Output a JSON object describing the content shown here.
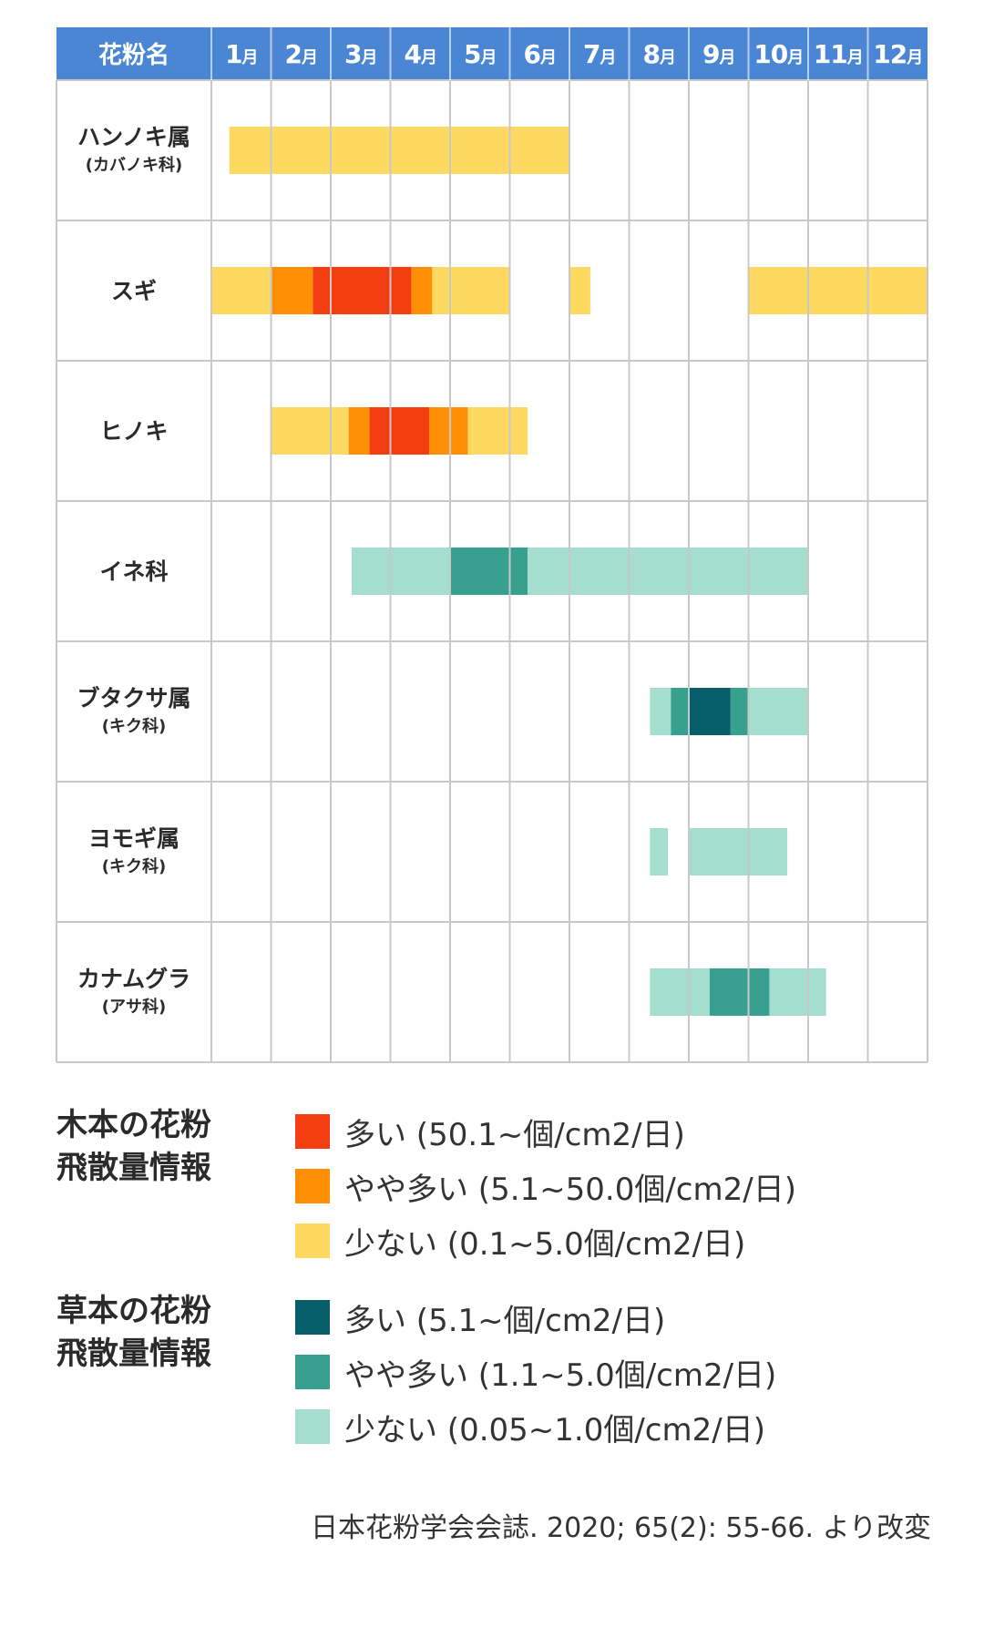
{
  "chart_data": {
    "type": "heatmap",
    "header_label": "花粉名",
    "months": [
      "1",
      "2",
      "3",
      "4",
      "5",
      "6",
      "7",
      "8",
      "9",
      "10",
      "11",
      "12"
    ],
    "month_unit": "月",
    "colors": {
      "header_bg": "#4a86d4",
      "header_text": "#ffffff",
      "grid": "#c8c8c8",
      "tree_high": "#f53d12",
      "tree_mid": "#ff9005",
      "tree_low": "#fdd962",
      "grass_high": "#075e6b",
      "grass_mid": "#37a08f",
      "grass_low": "#a5ddce"
    },
    "rows": [
      {
        "name": "ハンノキ属",
        "sub": "(カバノキ科)",
        "segments": [
          {
            "start": 1.3,
            "end": 7.0,
            "level": "tree_low"
          }
        ]
      },
      {
        "name": "スギ",
        "sub": "",
        "segments": [
          {
            "start": 1.0,
            "end": 2.0,
            "level": "tree_low"
          },
          {
            "start": 2.0,
            "end": 2.7,
            "level": "tree_mid"
          },
          {
            "start": 2.7,
            "end": 4.35,
            "level": "tree_high"
          },
          {
            "start": 4.35,
            "end": 4.7,
            "level": "tree_mid"
          },
          {
            "start": 4.7,
            "end": 6.0,
            "level": "tree_low"
          },
          {
            "start": 7.0,
            "end": 7.35,
            "level": "tree_low"
          },
          {
            "start": 10.0,
            "end": 13.0,
            "level": "tree_low"
          }
        ]
      },
      {
        "name": "ヒノキ",
        "sub": "",
        "segments": [
          {
            "start": 2.0,
            "end": 3.3,
            "level": "tree_low"
          },
          {
            "start": 3.3,
            "end": 3.65,
            "level": "tree_mid"
          },
          {
            "start": 3.65,
            "end": 4.65,
            "level": "tree_high"
          },
          {
            "start": 4.65,
            "end": 5.3,
            "level": "tree_mid"
          },
          {
            "start": 5.3,
            "end": 6.3,
            "level": "tree_low"
          }
        ]
      },
      {
        "name": "イネ科",
        "sub": "",
        "segments": [
          {
            "start": 3.35,
            "end": 5.0,
            "level": "grass_low"
          },
          {
            "start": 5.0,
            "end": 6.3,
            "level": "grass_mid"
          },
          {
            "start": 6.3,
            "end": 11.0,
            "level": "grass_low"
          }
        ]
      },
      {
        "name": "ブタクサ属",
        "sub": "(キク科)",
        "segments": [
          {
            "start": 8.35,
            "end": 8.7,
            "level": "grass_low"
          },
          {
            "start": 8.7,
            "end": 9.0,
            "level": "grass_mid"
          },
          {
            "start": 9.0,
            "end": 9.7,
            "level": "grass_high"
          },
          {
            "start": 9.7,
            "end": 10.0,
            "level": "grass_mid"
          },
          {
            "start": 10.0,
            "end": 11.0,
            "level": "grass_low"
          }
        ]
      },
      {
        "name": "ヨモギ属",
        "sub": "(キク科)",
        "segments": [
          {
            "start": 8.35,
            "end": 8.65,
            "level": "grass_low"
          },
          {
            "start": 9.0,
            "end": 10.65,
            "level": "grass_low"
          }
        ]
      },
      {
        "name": "カナムグラ",
        "sub": "(アサ科)",
        "segments": [
          {
            "start": 8.35,
            "end": 9.35,
            "level": "grass_low"
          },
          {
            "start": 9.35,
            "end": 10.35,
            "level": "grass_mid"
          },
          {
            "start": 10.35,
            "end": 11.3,
            "level": "grass_low"
          }
        ]
      }
    ]
  },
  "legend": {
    "tree": {
      "title_line1": "木本の花粉",
      "title_line2": "飛散量情報",
      "items": [
        {
          "label": "多い (50.1~個/cm2/日)",
          "color": "#f53d12"
        },
        {
          "label": "やや多い (5.1~50.0個/cm2/日)",
          "color": "#ff9005"
        },
        {
          "label": "少ない (0.1~5.0個/cm2/日)",
          "color": "#fdd962"
        }
      ]
    },
    "grass": {
      "title_line1": "草本の花粉",
      "title_line2": "飛散量情報",
      "items": [
        {
          "label": "多い (5.1~個/cm2/日)",
          "color": "#075e6b"
        },
        {
          "label": "やや多い (1.1~5.0個/cm2/日)",
          "color": "#37a08f"
        },
        {
          "label": "少ない (0.05~1.0個/cm2/日)",
          "color": "#a5ddce"
        }
      ]
    }
  },
  "citation": "日本花粉学会会誌. 2020; 65(2): 55-66. より改変"
}
